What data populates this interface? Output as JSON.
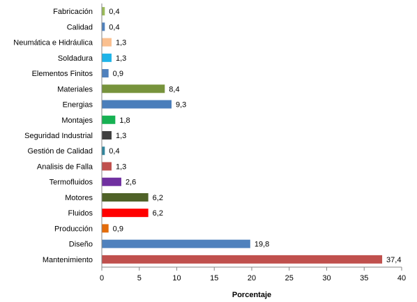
{
  "chart_data": {
    "type": "bar",
    "orientation": "horizontal",
    "title": "",
    "xlabel": "Porcentaje",
    "ylabel": "",
    "xlim": [
      0,
      40
    ],
    "xticks": [
      0,
      5,
      10,
      15,
      20,
      25,
      30,
      35,
      40
    ],
    "grid": false,
    "legend": "none",
    "categories": [
      "Fabricación",
      "Calidad",
      "Neumática e Hidráulica",
      "Soldadura",
      "Elementos Finitos",
      "Materiales",
      "Energias",
      "Montajes",
      "Seguridad Industrial",
      "Gestión de Calidad",
      "Analisis de Falla",
      "Termofluidos",
      "Motores",
      "Fluidos",
      "Producción",
      "Diseño",
      "Mantenimiento"
    ],
    "values": [
      0.4,
      0.4,
      1.3,
      1.3,
      0.9,
      8.4,
      9.3,
      1.8,
      1.3,
      0.4,
      1.3,
      2.6,
      6.2,
      6.2,
      0.9,
      19.8,
      37.4
    ],
    "value_labels": [
      "0,4",
      "0,4",
      "1,3",
      "1,3",
      "0,9",
      "8,4",
      "9,3",
      "1,8",
      "1,3",
      "0,4",
      "1,3",
      "2,6",
      "6,2",
      "6,2",
      "0,9",
      "19,8",
      "37,4"
    ],
    "colors": [
      "#9bbb59",
      "#4f81bd",
      "#fac090",
      "#1fb4e8",
      "#4f81bd",
      "#77933c",
      "#4a7ebb",
      "#16b152",
      "#404040",
      "#31859c",
      "#c0504d",
      "#7030a0",
      "#4f6228",
      "#ff0000",
      "#e46c0a",
      "#4f81bd",
      "#c0504d"
    ]
  }
}
